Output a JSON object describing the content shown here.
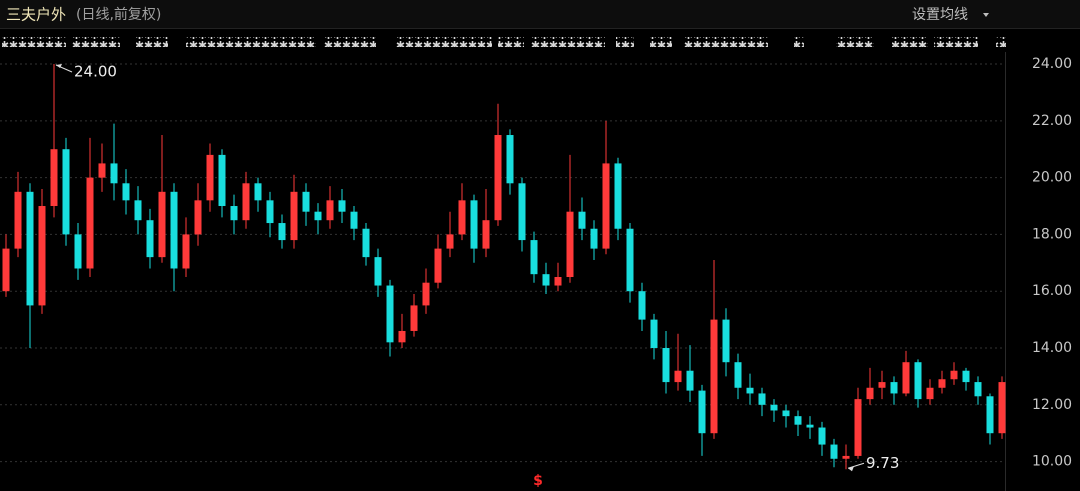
{
  "chart_data": {
    "type": "candlestick",
    "title": "三夫户外",
    "subtitle": "(日线,前复权)",
    "menu": "设置均线",
    "marker": "$",
    "up_color": "#ff3a3a",
    "down_color": "#19dede",
    "grid": true,
    "ylim": [
      9,
      24.3
    ],
    "yticks": [
      {
        "value": 10,
        "label": "10.00"
      },
      {
        "value": 12,
        "label": "12.00"
      },
      {
        "value": 14,
        "label": "14.00"
      },
      {
        "value": 16,
        "label": "16.00"
      },
      {
        "value": 18,
        "label": "18.00"
      },
      {
        "value": 20,
        "label": "20.00"
      },
      {
        "value": 22,
        "label": "22.00"
      },
      {
        "value": 24,
        "label": "24.00"
      }
    ],
    "open": [
      16,
      17.5,
      19.5,
      15.5,
      19,
      21,
      18,
      16.8,
      20,
      20.5,
      19.8,
      19.2,
      18.5,
      17.2,
      19.5,
      16.8,
      18,
      19.2,
      20.8,
      19,
      18.5,
      19.8,
      19.2,
      18.4,
      17.8,
      19.5,
      18.8,
      18.5,
      19.2,
      18.8,
      18.2,
      17.2,
      16.2,
      14.2,
      14.6,
      15.5,
      16.3,
      17.5,
      18,
      19.2,
      17.5,
      18.5,
      21.5,
      19.8,
      17.8,
      16.6,
      16.2,
      16.5,
      18.8,
      18.2,
      17.5,
      20.5,
      18.2,
      16,
      15,
      14,
      12.8,
      13.2,
      12.5,
      11,
      15,
      13.5,
      12.6,
      12.4,
      12,
      11.8,
      11.6,
      11.3,
      11.2,
      10.6,
      10.1,
      10.2,
      12.2,
      12.6,
      12.8,
      12.4,
      13.5,
      12.2,
      12.6,
      12.9,
      13.2,
      12.8,
      12.3,
      11
    ],
    "high": [
      18,
      20.2,
      19.8,
      19.6,
      24,
      21.4,
      18.4,
      21.4,
      21.2,
      21.9,
      20.3,
      19.7,
      18.9,
      21.5,
      19.8,
      18.6,
      19.8,
      21.2,
      21,
      19.4,
      20.2,
      20,
      19.5,
      18.7,
      20.1,
      19.8,
      19.1,
      19.7,
      19.6,
      19,
      18.4,
      17.5,
      16.4,
      15.2,
      15.9,
      16.8,
      18,
      18.8,
      19.8,
      19.4,
      19.6,
      22.6,
      21.7,
      20,
      18.1,
      17,
      17,
      20.8,
      19.3,
      18.5,
      22,
      20.7,
      18.4,
      16.3,
      15.2,
      14.6,
      14.5,
      14.1,
      12.7,
      17.1,
      15.4,
      13.8,
      13.1,
      12.6,
      12.2,
      12,
      11.8,
      11.6,
      11.4,
      10.8,
      10.6,
      12.6,
      13.3,
      13.2,
      13,
      13.9,
      13.6,
      12.9,
      13.2,
      13.5,
      13.3,
      13,
      12.4,
      13
    ],
    "low": [
      15.8,
      17.2,
      14,
      15.2,
      18.6,
      17.6,
      16.4,
      16.5,
      19.5,
      19.2,
      18.7,
      18,
      16.8,
      17,
      16,
      16.5,
      17.6,
      18.8,
      18.6,
      18,
      18.2,
      18.8,
      17.9,
      17.5,
      17.5,
      18.3,
      18,
      18.2,
      18.4,
      17.8,
      16.9,
      15.8,
      13.7,
      14,
      14.4,
      15.2,
      16.1,
      17.2,
      17.8,
      17,
      17.2,
      18.3,
      19.4,
      17.4,
      16.3,
      15.9,
      16,
      16.3,
      17.8,
      17.1,
      17.3,
      17.8,
      15.6,
      14.6,
      13.6,
      12.4,
      12.5,
      12.1,
      10.2,
      10.8,
      13,
      12.2,
      12,
      11.6,
      11.4,
      11.2,
      10.9,
      10.8,
      10.2,
      9.8,
      9.73,
      10.1,
      12,
      12.2,
      12,
      12.3,
      11.9,
      12,
      12.4,
      12.7,
      12.5,
      12,
      10.6,
      10.8
    ],
    "close": [
      17.5,
      19.5,
      15.5,
      19,
      21,
      18,
      16.8,
      20,
      20.5,
      19.8,
      19.2,
      18.5,
      17.2,
      19.5,
      16.8,
      18,
      19.2,
      20.8,
      19,
      18.5,
      19.8,
      19.2,
      18.4,
      17.8,
      19.5,
      18.8,
      18.5,
      19.2,
      18.8,
      18.2,
      17.2,
      16.2,
      14.2,
      14.6,
      15.5,
      16.3,
      17.5,
      18,
      19.2,
      17.5,
      18.5,
      21.5,
      19.8,
      17.8,
      16.6,
      16.2,
      16.5,
      18.8,
      18.2,
      17.5,
      20.5,
      18.2,
      16,
      15,
      14,
      12.8,
      13.2,
      12.5,
      11,
      15,
      13.5,
      12.6,
      12.4,
      12,
      11.8,
      11.6,
      11.3,
      11.2,
      10.6,
      10.1,
      10.2,
      12.2,
      12.6,
      12.8,
      12.4,
      13.5,
      12.2,
      12.6,
      12.9,
      13.2,
      12.8,
      12.3,
      11,
      12.8
    ],
    "annotations": [
      {
        "label": "24.00",
        "value": 24
      },
      {
        "label": "9.73",
        "value": 9.73
      }
    ]
  }
}
